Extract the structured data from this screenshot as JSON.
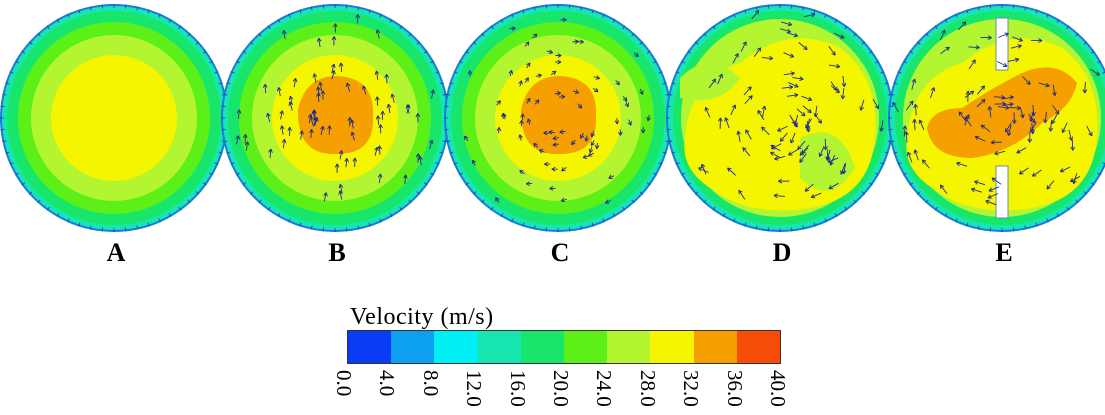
{
  "panels": [
    {
      "label": "A",
      "arrows": "none"
    },
    {
      "label": "B",
      "arrows": "radial"
    },
    {
      "label": "C",
      "arrows": "radial-short"
    },
    {
      "label": "D",
      "arrows": "swirl"
    },
    {
      "label": "E",
      "arrows": "swirl-baffles"
    }
  ],
  "legend": {
    "title": "Velocity (m/s)",
    "ticks": [
      "0.0",
      "4.0",
      "8.0",
      "12.0",
      "16.0",
      "20.0",
      "24.0",
      "28.0",
      "32.0",
      "36.0",
      "40.0"
    ],
    "colors": [
      "#0a3cf5",
      "#0ea0f0",
      "#00f0f5",
      "#18e6b0",
      "#18e66a",
      "#5cf018",
      "#b4f532",
      "#f5f500",
      "#f5a000",
      "#f54c0a"
    ]
  },
  "colors": {
    "vector_arrows": "#1e2a8a",
    "rim": "#1a7ae0",
    "baffle": "#ffffff"
  }
}
